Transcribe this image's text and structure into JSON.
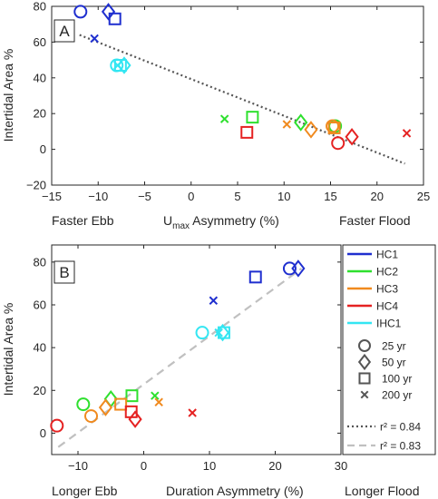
{
  "chart_data": [
    {
      "type": "scatter",
      "panel_label": "A",
      "ylabel": "Intertidal Area %",
      "xlabel": {
        "base": "U",
        "sub": "max",
        "rest": " Asymmetry (%)"
      },
      "x_left_label": "Faster Ebb",
      "x_right_label": "Faster Flood",
      "xlim": [
        -15,
        25
      ],
      "ylim": [
        -20,
        80
      ],
      "xticks": [
        -15,
        -10,
        -5,
        0,
        5,
        10,
        15,
        20,
        25
      ],
      "yticks": [
        -20,
        0,
        20,
        40,
        60,
        80
      ],
      "grid": false,
      "series": [
        {
          "name": "HC1",
          "color": "#1f2fcf",
          "points": [
            {
              "marker": "circle",
              "x": -11.9,
              "y": 77
            },
            {
              "marker": "diamond",
              "x": -8.9,
              "y": 77
            },
            {
              "marker": "square",
              "x": -8.2,
              "y": 73
            },
            {
              "marker": "x",
              "x": -10.4,
              "y": 62
            }
          ]
        },
        {
          "name": "HC2",
          "color": "#2ee02e",
          "points": [
            {
              "marker": "circle",
              "x": 15.5,
              "y": 13
            },
            {
              "marker": "diamond",
              "x": 11.8,
              "y": 15
            },
            {
              "marker": "square",
              "x": 6.6,
              "y": 18
            },
            {
              "marker": "x",
              "x": 3.6,
              "y": 17
            }
          ]
        },
        {
          "name": "HC3",
          "color": "#f08a1e",
          "points": [
            {
              "marker": "circle",
              "x": 15.2,
              "y": 13
            },
            {
              "marker": "diamond",
              "x": 12.9,
              "y": 11
            },
            {
              "marker": "square",
              "x": 15.4,
              "y": 12
            },
            {
              "marker": "x",
              "x": 10.3,
              "y": 14
            }
          ]
        },
        {
          "name": "HC4",
          "color": "#e52222",
          "points": [
            {
              "marker": "circle",
              "x": 15.8,
              "y": 3.5
            },
            {
              "marker": "diamond",
              "x": 17.3,
              "y": 7
            },
            {
              "marker": "square",
              "x": 6.0,
              "y": 9.5
            },
            {
              "marker": "x",
              "x": 23.2,
              "y": 9
            }
          ]
        },
        {
          "name": "IHC1",
          "color": "#33e6f2",
          "points": [
            {
              "marker": "circle",
              "x": -8.0,
              "y": 47
            },
            {
              "marker": "diamond",
              "x": -7.2,
              "y": 47
            },
            {
              "marker": "square",
              "x": -7.6,
              "y": 47
            },
            {
              "marker": "x",
              "x": -7.9,
              "y": 47
            }
          ]
        }
      ],
      "trend_line": {
        "style": "dotted",
        "points": [
          [
            -12,
            64
          ],
          [
            23,
            -8
          ]
        ]
      }
    },
    {
      "type": "scatter",
      "panel_label": "B",
      "ylabel": "Intertidal Area %",
      "xlabel": "Duration Asymmetry (%)",
      "x_left_label": "Longer Ebb",
      "x_right_label": "Longer Flood",
      "xlim": [
        -14,
        30
      ],
      "ylim": [
        -10,
        88
      ],
      "xticks": [
        -10,
        0,
        10,
        20,
        30
      ],
      "yticks": [
        0,
        20,
        40,
        60,
        80
      ],
      "grid": false,
      "series": [
        {
          "name": "HC1",
          "color": "#1f2fcf",
          "points": [
            {
              "marker": "circle",
              "x": 22.2,
              "y": 77
            },
            {
              "marker": "diamond",
              "x": 23.5,
              "y": 77
            },
            {
              "marker": "square",
              "x": 17.0,
              "y": 73
            },
            {
              "marker": "x",
              "x": 10.6,
              "y": 62
            }
          ]
        },
        {
          "name": "HC2",
          "color": "#2ee02e",
          "points": [
            {
              "marker": "circle",
              "x": -9.2,
              "y": 13.5
            },
            {
              "marker": "diamond",
              "x": -5.0,
              "y": 16
            },
            {
              "marker": "square",
              "x": -1.8,
              "y": 17.5
            },
            {
              "marker": "x",
              "x": 1.7,
              "y": 17.5
            }
          ]
        },
        {
          "name": "HC3",
          "color": "#f08a1e",
          "points": [
            {
              "marker": "circle",
              "x": -8.0,
              "y": 8
            },
            {
              "marker": "diamond",
              "x": -5.8,
              "y": 12
            },
            {
              "marker": "square",
              "x": -3.5,
              "y": 13.5
            },
            {
              "marker": "x",
              "x": 2.3,
              "y": 14.5
            }
          ]
        },
        {
          "name": "HC4",
          "color": "#e52222",
          "points": [
            {
              "marker": "circle",
              "x": -13.2,
              "y": 3.5
            },
            {
              "marker": "diamond",
              "x": -1.3,
              "y": 6.5
            },
            {
              "marker": "square",
              "x": -1.9,
              "y": 10
            },
            {
              "marker": "x",
              "x": 7.4,
              "y": 9.5
            }
          ]
        },
        {
          "name": "IHC1",
          "color": "#33e6f2",
          "points": [
            {
              "marker": "circle",
              "x": 8.9,
              "y": 47
            },
            {
              "marker": "diamond",
              "x": 12.0,
              "y": 47
            },
            {
              "marker": "square",
              "x": 12.2,
              "y": 47
            },
            {
              "marker": "x",
              "x": 11.4,
              "y": 47
            }
          ]
        }
      ],
      "trend_line": {
        "style": "dashed",
        "points": [
          [
            -13,
            -6.5
          ],
          [
            24,
            77
          ]
        ]
      }
    }
  ],
  "legend": {
    "placement": "right of panel B",
    "sites": [
      {
        "label": "HC1",
        "color": "#1f2fcf"
      },
      {
        "label": "HC2",
        "color": "#2ee02e"
      },
      {
        "label": "HC3",
        "color": "#f08a1e"
      },
      {
        "label": "HC4",
        "color": "#e52222"
      },
      {
        "label": "IHC1",
        "color": "#33e6f2"
      }
    ],
    "ages": [
      {
        "label": "25 yr",
        "marker": "circle"
      },
      {
        "label": "50 yr",
        "marker": "diamond"
      },
      {
        "label": "100 yr",
        "marker": "square"
      },
      {
        "label": "200 yr",
        "marker": "x"
      }
    ],
    "fits": [
      {
        "label": "r² = 0.84",
        "style": "dotted",
        "color": "#555555"
      },
      {
        "label": "r² = 0.83",
        "style": "dashed",
        "color": "#c0c0c0"
      }
    ]
  }
}
